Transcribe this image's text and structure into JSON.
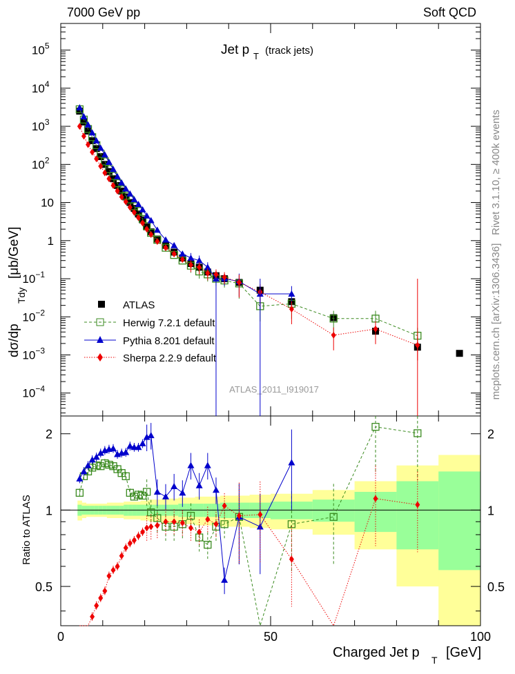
{
  "header": {
    "left": "7000 GeV pp",
    "right": "Soft QCD"
  },
  "side_labels": {
    "rivet": "Rivet 3.1.10, ≥ 400k events",
    "source": "mcplots.cern.ch [arXiv:1306.3436]"
  },
  "colors": {
    "atlas": "#000000",
    "herwig": "#3a8a1f",
    "pythia": "#0000cc",
    "sherpa": "#ee0000",
    "band_inner": "#99ff99",
    "band_outer": "#ffff99"
  },
  "chart_data": [
    {
      "type": "scatter",
      "title": "Jet p",
      "title_sub": "T",
      "title_suffix": "(track jets)",
      "ylabel": "dσ/dp",
      "ylabel_sub": "Tdy",
      "ylabel_units": "[μb/GeV]",
      "yscale": "log",
      "ylim": [
        2.5e-05,
        500000.0
      ],
      "xlim": [
        0,
        100
      ],
      "y_tick_labels": [
        "10^5",
        "10^4",
        "10^3",
        "10^2",
        "10",
        "1",
        "10^-1",
        "10^-2",
        "10^-3",
        "10^-4"
      ],
      "watermark": "ATLAS_2011_I919017",
      "legend_position": "lower-left",
      "legend": [
        {
          "key": "atlas",
          "label": "ATLAS"
        },
        {
          "key": "herwig",
          "label": "Herwig 7.2.1 default"
        },
        {
          "key": "pythia",
          "label": "Pythia 8.201 default"
        },
        {
          "key": "sherpa",
          "label": "Sherpa 2.2.9 default"
        }
      ],
      "x": [
        4.5,
        5.5,
        6.5,
        7.5,
        8.5,
        9.5,
        10.5,
        11.5,
        12.5,
        13.5,
        14.5,
        15.5,
        16.5,
        17.5,
        18.5,
        19.5,
        20.5,
        21.5,
        23,
        25,
        27,
        29,
        31,
        33,
        35,
        37,
        39,
        42.5,
        47.5,
        55,
        65,
        75,
        85,
        95
      ],
      "series": [
        {
          "name": "ATLAS",
          "key": "atlas",
          "marker": "square-filled",
          "values": [
            2500,
            1300,
            750,
            420,
            260,
            160,
            100,
            65,
            42,
            28,
            20,
            14,
            10,
            7,
            5,
            3.5,
            2.3,
            1.7,
            1.1,
            0.75,
            0.5,
            0.35,
            0.25,
            0.2,
            0.15,
            0.12,
            0.1,
            0.08,
            0.05,
            0.025,
            0.0095,
            0.0042,
            0.0016,
            0.0011
          ]
        },
        {
          "name": "Herwig 7.2.1 default",
          "key": "herwig",
          "marker": "square-open",
          "values": [
            2800,
            1500,
            850,
            520,
            320,
            190,
            120,
            75,
            50,
            32,
            22,
            15,
            12,
            8,
            6,
            3.7,
            2.4,
            1.6,
            1.05,
            0.65,
            0.42,
            0.3,
            0.22,
            0.155,
            0.13,
            0.1,
            0.09,
            0.075,
            0.019,
            0.022,
            0.009,
            0.009,
            0.0032,
            null
          ]
        },
        {
          "name": "Pythia 8.201 default",
          "key": "pythia",
          "marker": "triangle-filled",
          "values": [
            3100,
            1800,
            1100,
            680,
            420,
            270,
            180,
            115,
            75,
            48,
            33,
            23,
            17,
            12,
            9,
            6.5,
            4.5,
            3.4,
            1.9,
            1.05,
            0.75,
            0.45,
            0.35,
            0.3,
            0.2,
            0.1,
            0.1,
            0.085,
            0.04,
            0.04,
            null,
            null,
            null,
            null
          ]
        },
        {
          "name": "Sherpa 2.2.9 default",
          "key": "sherpa",
          "marker": "diamond-filled",
          "values": [
            1000,
            550,
            330,
            210,
            140,
            90,
            60,
            42,
            28,
            20,
            14,
            10.5,
            7.5,
            5.5,
            4,
            2.9,
            2,
            1.45,
            0.95,
            0.65,
            0.45,
            0.32,
            0.23,
            0.2,
            0.14,
            0.13,
            0.11,
            0.08,
            0.045,
            0.016,
            0.0033,
            0.0048,
            0.0018,
            null
          ]
        }
      ]
    },
    {
      "type": "scatter",
      "xlabel": "Charged Jet p",
      "xlabel_sub": "T",
      "xlabel_units": "[GeV]",
      "ylabel": "Ratio to ATLAS",
      "ylim": [
        0.35,
        2.35
      ],
      "xlim": [
        0,
        100
      ],
      "x_tick_labels": [
        "0",
        "50",
        "100"
      ],
      "y_tick_labels": [
        "0.5",
        "1",
        "2"
      ],
      "x": [
        4.5,
        5.5,
        6.5,
        7.5,
        8.5,
        9.5,
        10.5,
        11.5,
        12.5,
        13.5,
        14.5,
        15.5,
        16.5,
        17.5,
        18.5,
        19.5,
        20.5,
        21.5,
        23,
        25,
        27,
        29,
        31,
        33,
        35,
        37,
        39,
        42.5,
        47.5,
        55,
        65,
        75,
        85
      ],
      "series": [
        {
          "name": "Herwig 7.2.1 default",
          "key": "herwig",
          "values": [
            1.17,
            1.36,
            1.42,
            1.47,
            1.5,
            1.49,
            1.53,
            1.51,
            1.49,
            1.45,
            1.4,
            1.36,
            1.17,
            1.13,
            1.15,
            1.14,
            1.18,
            0.98,
            0.93,
            0.86,
            0.86,
            0.88,
            0.95,
            0.78,
            0.73,
            0.86,
            0.88,
            0.94,
            0.33,
            0.88,
            0.94,
            2.13,
            2.01
          ]
        },
        {
          "name": "Pythia 8.201 default",
          "key": "pythia",
          "values": [
            1.33,
            1.42,
            1.5,
            1.58,
            1.62,
            1.68,
            1.72,
            1.74,
            1.75,
            1.66,
            1.68,
            1.69,
            1.79,
            1.77,
            1.77,
            1.83,
            1.94,
            1.97,
            1.18,
            1.13,
            1.24,
            1.17,
            1.5,
            1.25,
            1.5,
            1.2,
            0.53,
            0.94,
            0.86,
            1.54,
            null,
            null,
            null
          ]
        },
        {
          "name": "Sherpa 2.2.9 default",
          "key": "sherpa",
          "values": [
            0.28,
            0.31,
            0.34,
            0.38,
            0.42,
            0.45,
            0.48,
            0.55,
            0.58,
            0.6,
            0.66,
            0.71,
            0.74,
            0.76,
            0.79,
            0.82,
            0.85,
            0.86,
            0.87,
            0.9,
            0.9,
            0.89,
            0.85,
            0.82,
            0.92,
            0.88,
            1.04,
            0.95,
            0.96,
            0.64,
            0.32,
            1.11,
            1.05
          ]
        }
      ]
    }
  ]
}
